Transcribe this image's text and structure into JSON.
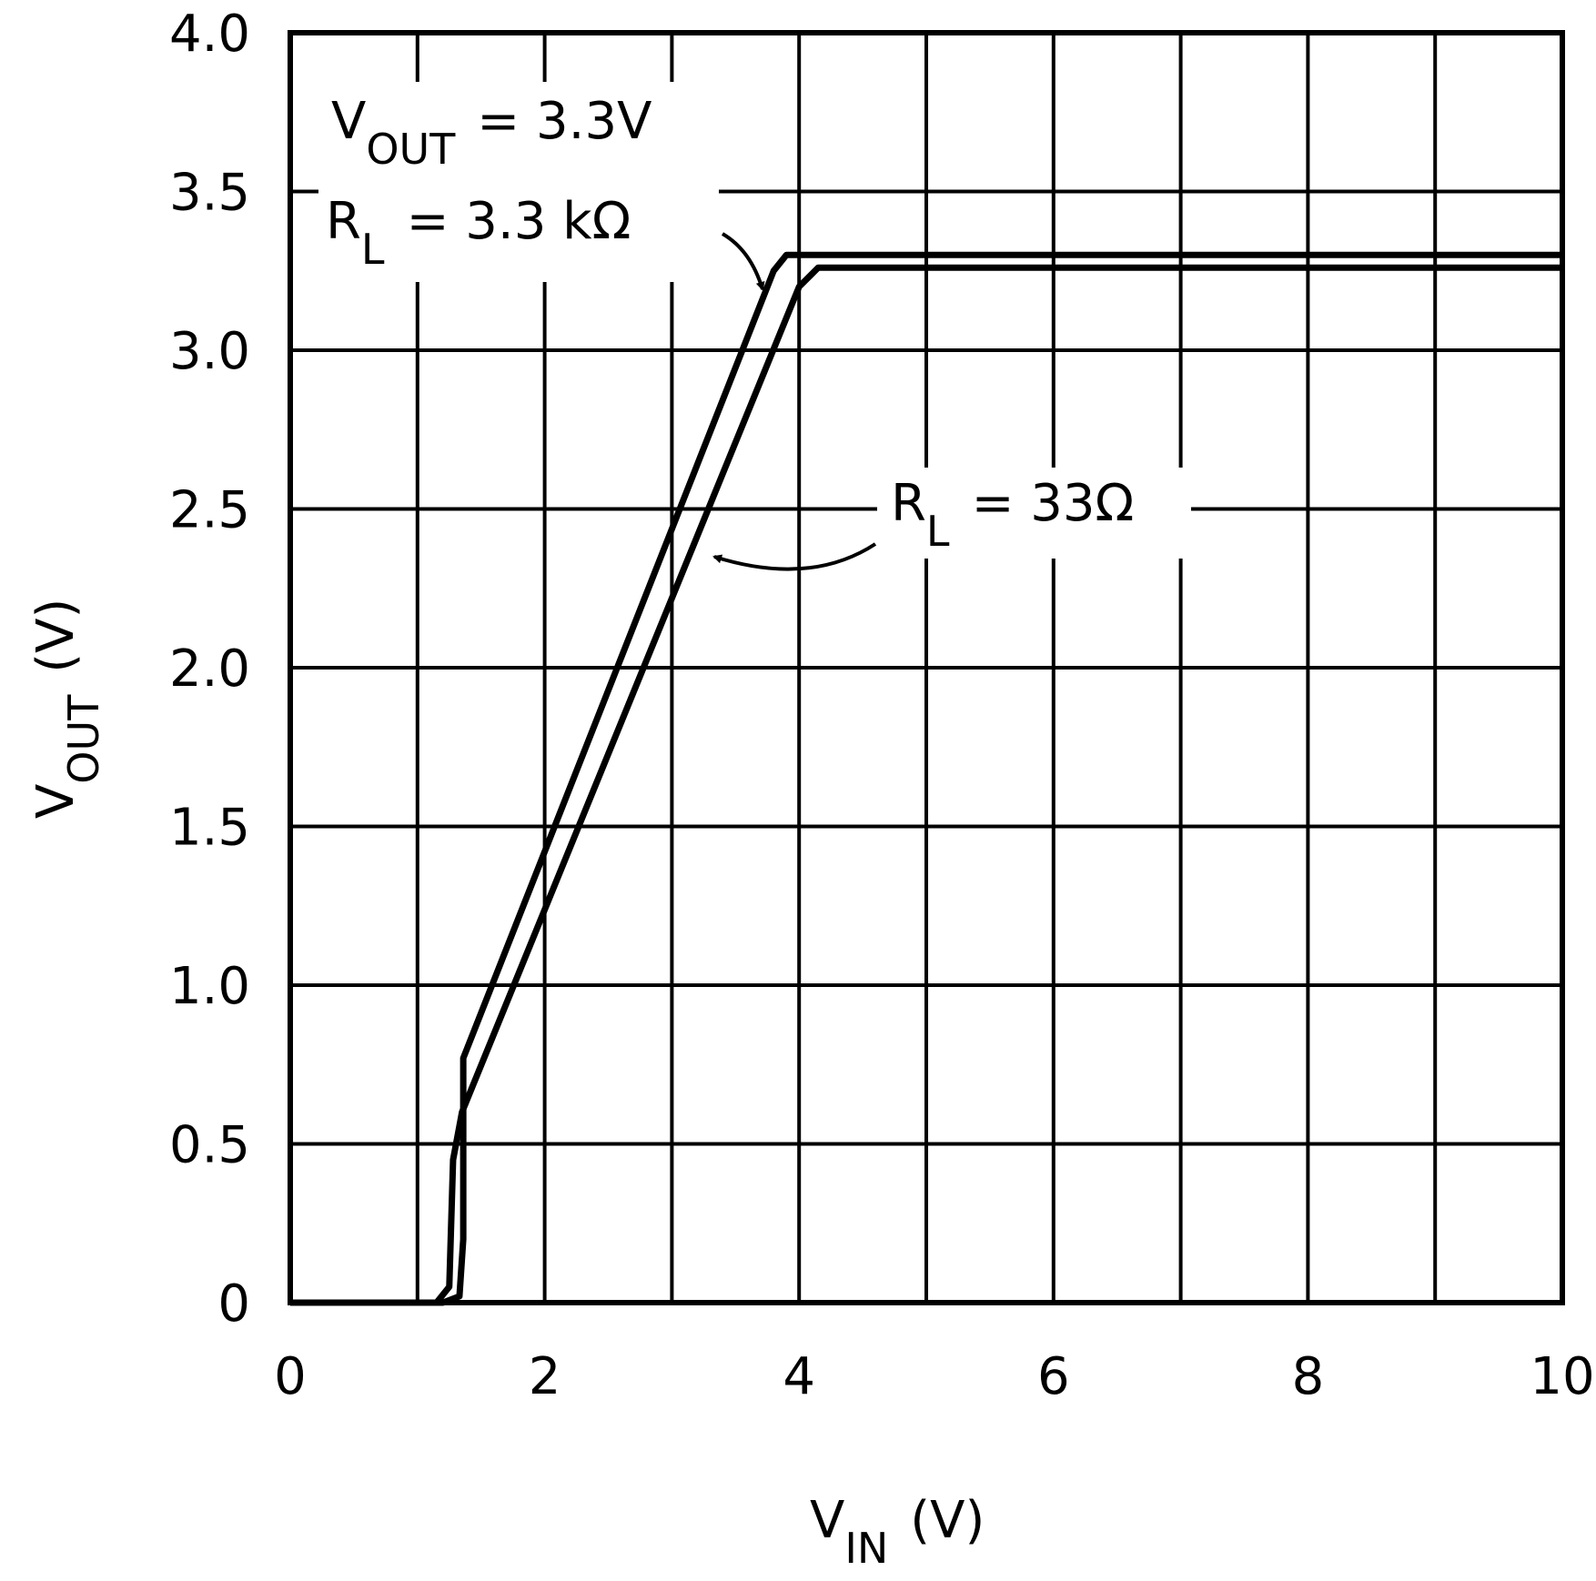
{
  "chart_data": {
    "type": "line",
    "xlabel": {
      "main": "V",
      "sub": "IN",
      "rest": "(V)"
    },
    "ylabel": {
      "main": "V",
      "sub": "OUT",
      "rest": "(V)"
    },
    "annotations": [
      {
        "main": "V",
        "sub": "OUT",
        "rest": "= 3.3V"
      },
      {
        "main": "R",
        "sub": "L",
        "rest": "= 3.3 kΩ"
      },
      {
        "main": "R",
        "sub": "L",
        "rest": "= 33Ω"
      }
    ],
    "series": [
      {
        "color": "#000000",
        "x": [
          0,
          1.2,
          1.33,
          1.36,
          1.36,
          3.8,
          3.9,
          10
        ],
        "values": [
          0,
          0,
          0.02,
          0.2,
          0.77,
          3.25,
          3.3,
          3.3
        ]
      },
      {
        "color": "#000000",
        "x": [
          0,
          1.15,
          1.25,
          1.28,
          1.35,
          4.0,
          4.15,
          10
        ],
        "values": [
          0,
          0,
          0.05,
          0.45,
          0.6,
          3.2,
          3.26,
          3.26
        ]
      }
    ],
    "xlim": [
      0,
      10
    ],
    "xticks": [
      0,
      2,
      4,
      6,
      8,
      10
    ],
    "xminor": [
      1,
      3,
      5,
      7,
      9
    ],
    "ylim": [
      0,
      4
    ],
    "yticks": [
      0,
      0.5,
      {
        "value": 1,
        "label": "1.0"
      },
      1.5,
      {
        "value": 2,
        "label": "2.0"
      },
      2.5,
      {
        "value": 3,
        "label": "3.0"
      },
      3.5,
      {
        "value": 4,
        "label": "4.0"
      }
    ],
    "grid": true
  }
}
